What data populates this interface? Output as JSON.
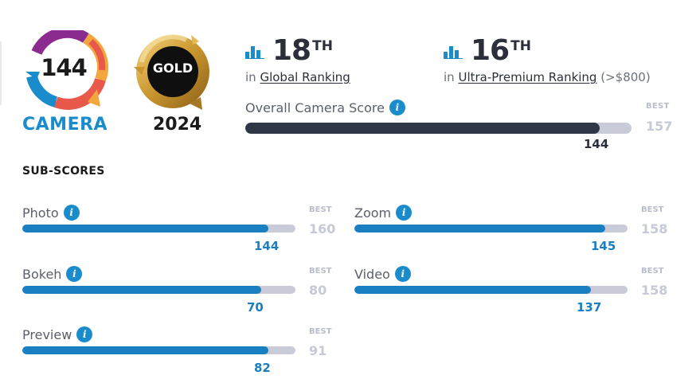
{
  "badge": {
    "score": "144",
    "category": "CAMERA",
    "colors": [
      "#8b2b8f",
      "#e8594c",
      "#f3a63b",
      "#1a8ccb"
    ]
  },
  "medal": {
    "label": "GOLD",
    "year": "2024",
    "color": "#c9962f"
  },
  "rankings": [
    {
      "rank": "18",
      "suffix": "TH",
      "prefix": "in",
      "label": "Global Ranking",
      "extra": ""
    },
    {
      "rank": "16",
      "suffix": "TH",
      "prefix": "in",
      "label": "Ultra-Premium Ranking",
      "extra": "(>$800)"
    }
  ],
  "overall": {
    "label": "Overall Camera Score",
    "best_label": "BEST",
    "value": "144",
    "best": "157",
    "fraction": 0.917
  },
  "subscores_title": "SUB-SCORES",
  "subscores": [
    {
      "label": "Photo",
      "value": "144",
      "best": "160",
      "best_label": "BEST",
      "fraction": 0.9
    },
    {
      "label": "Zoom",
      "value": "145",
      "best": "158",
      "best_label": "BEST",
      "fraction": 0.918
    },
    {
      "label": "Bokeh",
      "value": "70",
      "best": "80",
      "best_label": "BEST",
      "fraction": 0.875
    },
    {
      "label": "Video",
      "value": "137",
      "best": "158",
      "best_label": "BEST",
      "fraction": 0.867
    },
    {
      "label": "Preview",
      "value": "82",
      "best": "91",
      "best_label": "BEST",
      "fraction": 0.901
    }
  ],
  "icons": {
    "info": "info-icon",
    "ranking": "bar-chart-icon"
  },
  "accent_color": "#1a8ccb"
}
